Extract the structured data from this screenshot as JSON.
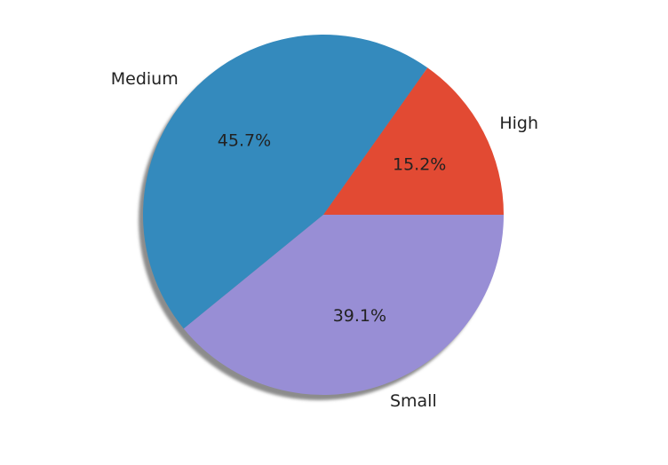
{
  "chart_data": {
    "type": "pie",
    "title": "",
    "start_angle_deg": 0,
    "direction": "counterclockwise",
    "shadow": true,
    "slices": [
      {
        "label": "High",
        "value": 15.2,
        "pct_label": "15.2%",
        "color": "#e24a33"
      },
      {
        "label": "Medium",
        "value": 45.7,
        "pct_label": "45.7%",
        "color": "#348abd"
      },
      {
        "label": "Small",
        "value": 39.1,
        "pct_label": "39.1%",
        "color": "#988ed5"
      }
    ]
  }
}
